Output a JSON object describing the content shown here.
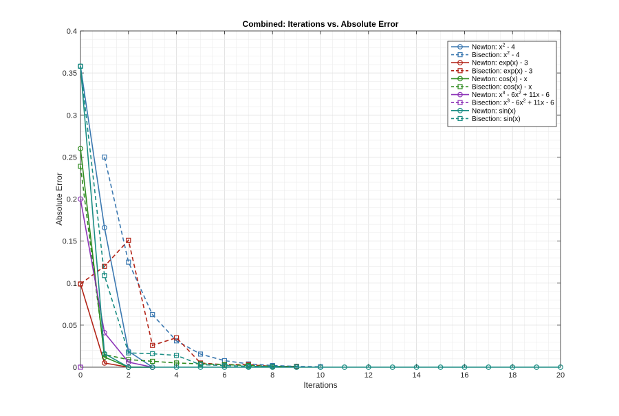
{
  "chart_data": {
    "type": "line",
    "title": "Combined: Iterations vs. Absolute Error",
    "xlabel": "Iterations",
    "ylabel": "Absolute Error",
    "xlim": [
      0,
      20
    ],
    "ylim": [
      0,
      0.4
    ],
    "xticks": [
      "0",
      "2",
      "4",
      "6",
      "8",
      "10",
      "12",
      "14",
      "16",
      "18",
      "20"
    ],
    "yticks": [
      "0",
      "0.05",
      "0.1",
      "0.15",
      "0.2",
      "0.25",
      "0.3",
      "0.35",
      "0.4"
    ],
    "grid": true,
    "legend_position": "top-right",
    "series": [
      {
        "name": "Newton: x^2 - 4",
        "name_parts": [
          [
            "Newton: x",
            "n"
          ],
          [
            "2",
            "sup"
          ],
          [
            " - 4",
            "n"
          ]
        ],
        "color": "#3b78b0",
        "dash": "solid",
        "marker": "circle",
        "x": [
          0,
          1,
          2,
          3
        ],
        "y": [
          0.358,
          0.166,
          0.019,
          0.0
        ]
      },
      {
        "name": "Bisection: x^2 - 4",
        "name_parts": [
          [
            "Bisection: x",
            "n"
          ],
          [
            "2",
            "sup"
          ],
          [
            " - 4",
            "n"
          ]
        ],
        "color": "#3b78b0",
        "dash": "dashed",
        "marker": "square",
        "x": [
          1,
          2,
          3,
          4,
          5,
          6,
          7,
          8,
          9,
          10
        ],
        "y": [
          0.25,
          0.125,
          0.0625,
          0.0313,
          0.0156,
          0.0078,
          0.0039,
          0.002,
          0.001,
          0.0005
        ]
      },
      {
        "name": "Newton: exp(x) - 3",
        "name_parts": [
          [
            "Newton: exp(x) - 3",
            "n"
          ]
        ],
        "color": "#b22418",
        "dash": "solid",
        "marker": "circle",
        "x": [
          0,
          1,
          2,
          3
        ],
        "y": [
          0.099,
          0.005,
          0.0,
          0.0
        ]
      },
      {
        "name": "Bisection: exp(x) - 3",
        "name_parts": [
          [
            "Bisection: exp(x) - 3",
            "n"
          ]
        ],
        "color": "#b22418",
        "dash": "dashed",
        "marker": "square",
        "x": [
          0,
          1,
          2,
          3,
          4,
          5,
          6,
          7,
          8,
          9
        ],
        "y": [
          0.099,
          0.12,
          0.151,
          0.026,
          0.035,
          0.005,
          0.003,
          0.003,
          0.001,
          0.001
        ]
      },
      {
        "name": "Newton: cos(x) - x",
        "name_parts": [
          [
            "Newton: cos(x) - x",
            "n"
          ]
        ],
        "color": "#2e8b1f",
        "dash": "solid",
        "marker": "circle",
        "x": [
          0,
          1,
          2,
          3
        ],
        "y": [
          0.26,
          0.012,
          0.0,
          0.0
        ]
      },
      {
        "name": "Bisection: cos(x) - x",
        "name_parts": [
          [
            "Bisection: cos(x) - x",
            "n"
          ]
        ],
        "color": "#2e8b1f",
        "dash": "dashed",
        "marker": "square",
        "x": [
          0,
          1,
          2,
          3,
          4,
          5,
          6,
          7,
          8,
          9
        ],
        "y": [
          0.239,
          0.015,
          0.009,
          0.007,
          0.005,
          0.004,
          0.003,
          0.002,
          0.001,
          0.0005
        ]
      },
      {
        "name": "Newton: x^3 - 6x^2 + 11x - 6",
        "name_parts": [
          [
            "Newton: x",
            "n"
          ],
          [
            "3",
            "sup"
          ],
          [
            " - 6x",
            "n"
          ],
          [
            "2",
            "sup"
          ],
          [
            " + 11x - 6",
            "n"
          ]
        ],
        "color": "#8e35b8",
        "dash": "solid",
        "marker": "circle",
        "x": [
          0,
          1,
          2,
          3
        ],
        "y": [
          0.2,
          0.041,
          0.006,
          0.0
        ]
      },
      {
        "name": "Bisection: x^3 - 6x^2 + 11x - 6",
        "name_parts": [
          [
            "Bisection: x",
            "n"
          ],
          [
            "3",
            "sup"
          ],
          [
            " - 6x",
            "n"
          ],
          [
            "2",
            "sup"
          ],
          [
            " + 11x - 6",
            "n"
          ]
        ],
        "color": "#8e35b8",
        "dash": "dashed",
        "marker": "square",
        "x": [
          0
        ],
        "y": [
          0.0
        ]
      },
      {
        "name": "Newton: sin(x)",
        "name_parts": [
          [
            "Newton: sin(x)",
            "n"
          ]
        ],
        "color": "#1a8c83",
        "dash": "solid",
        "marker": "circle",
        "x": [
          0,
          1,
          2,
          3,
          4,
          5,
          6,
          7,
          8,
          9,
          10,
          11,
          12,
          13,
          14,
          15,
          16,
          17,
          18,
          19,
          20
        ],
        "y": [
          0.358,
          0.016,
          0.0,
          0.0,
          0.0,
          0.0,
          0.0,
          0.0,
          0.0,
          0.0,
          0.0,
          0.0,
          0.0,
          0.0,
          0.0,
          0.0,
          0.0,
          0.0,
          0.0,
          0.0,
          0.0
        ]
      },
      {
        "name": "Bisection: sin(x)",
        "name_parts": [
          [
            "Bisection: sin(x)",
            "n"
          ]
        ],
        "color": "#1a8c83",
        "dash": "dashed",
        "marker": "square",
        "x": [
          0,
          1,
          2,
          3,
          4,
          5,
          6,
          7,
          8,
          9
        ],
        "y": [
          0.358,
          0.109,
          0.017,
          0.016,
          0.014,
          0.003,
          0.002,
          0.001,
          0.001,
          0.0005
        ]
      }
    ]
  }
}
